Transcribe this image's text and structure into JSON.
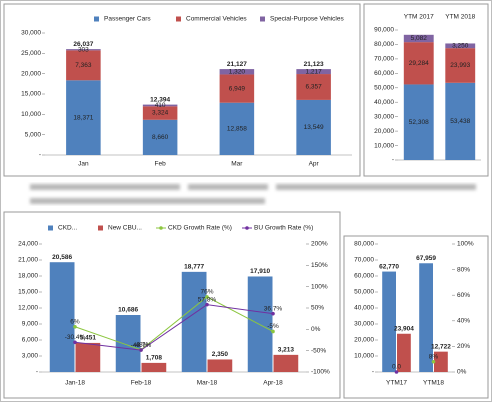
{
  "chart_data": [
    {
      "type": "stacked",
      "categories": [
        "Jan",
        "Feb",
        "Mar",
        "Apr"
      ],
      "series": [
        {
          "name": "Passenger Cars",
          "color": "#4f81bd",
          "values": [
            18371,
            8660,
            12858,
            13549
          ],
          "value_labels": [
            "18,371",
            "8,660",
            "12,858",
            "13,549"
          ]
        },
        {
          "name": "Commercial Vehicles",
          "color": "#c0504d",
          "values": [
            7363,
            3324,
            6949,
            6357
          ],
          "value_labels": [
            "7,363",
            "3,324",
            "6,949",
            "6,357"
          ]
        },
        {
          "name": "Special-Purpose Vehicles",
          "color": "#8064a2",
          "values": [
            303,
            410,
            1320,
            1217
          ],
          "value_labels": [
            "303",
            "410",
            "1,320",
            "1,217"
          ]
        }
      ],
      "totals": {
        "values": [
          26037,
          12394,
          21127,
          21123
        ],
        "value_labels": [
          "26,037",
          "12,394",
          "21,127",
          "21,123"
        ]
      },
      "ylim": [
        0,
        30000
      ],
      "yticks": [
        {
          "value": 0,
          "label": "-"
        },
        {
          "value": 5000,
          "label": "5,000"
        },
        {
          "value": 10000,
          "label": "10,000"
        },
        {
          "value": 15000,
          "label": "15,000"
        },
        {
          "value": 20000,
          "label": "20,000"
        },
        {
          "value": 25000,
          "label": "25,000"
        },
        {
          "value": 30000,
          "label": "30,000"
        }
      ],
      "legend": "top"
    },
    {
      "type": "stacked",
      "categories": [
        "YTM 2017",
        "YTM 2018"
      ],
      "series": [
        {
          "color": "#4f81bd",
          "values": [
            52308,
            53438
          ],
          "value_labels": [
            "52,308",
            "53,438"
          ]
        },
        {
          "color": "#c0504d",
          "values": [
            29284,
            23993
          ],
          "value_labels": [
            "29,284",
            "23,993"
          ]
        },
        {
          "color": "#8064a2",
          "values": [
            5082,
            3250
          ],
          "value_labels": [
            "5,082",
            "3,250"
          ]
        }
      ],
      "ylim": [
        0,
        90000
      ],
      "yticks": [
        {
          "value": 0,
          "label": "-"
        },
        {
          "value": 10000,
          "label": "10,000"
        },
        {
          "value": 20000,
          "label": "20,000"
        },
        {
          "value": 30000,
          "label": "30,000"
        },
        {
          "value": 40000,
          "label": "40,000"
        },
        {
          "value": 50000,
          "label": "50,000"
        },
        {
          "value": 60000,
          "label": "60,000"
        },
        {
          "value": 70000,
          "label": "70,000"
        },
        {
          "value": 80000,
          "label": "80,000"
        },
        {
          "value": 90000,
          "label": "90,000"
        }
      ]
    },
    {
      "type": "combo",
      "categories": [
        "Jan-18",
        "Feb-18",
        "Mar-18",
        "Apr-18"
      ],
      "series": [
        {
          "name": "CKD...",
          "color": "#4f81bd",
          "values": [
            20586,
            10686,
            18777,
            17910
          ],
          "value_labels": [
            "20,586",
            "10,686",
            "18,777",
            "17,910"
          ]
        },
        {
          "name": "New CBU...",
          "color": "#c0504d",
          "values": [
            5451,
            1708,
            2350,
            3213
          ],
          "value_labels": [
            "5,451",
            "1,708",
            "2,350",
            "3,213"
          ]
        },
        {
          "name": "CKD Growth Rate (%)",
          "type": "line",
          "axis": "y2",
          "color": "#8cc63f",
          "values": [
            6,
            -48,
            76,
            -5
          ],
          "value_labels": [
            "6%",
            "-48%",
            "76%",
            "-5%"
          ]
        },
        {
          "name": "BU Growth Rate (%)",
          "type": "line",
          "axis": "y2",
          "color": "#7030a0",
          "values": [
            -30.4,
            -48.7,
            57.8,
            36.7
          ],
          "value_labels": [
            "-30.4%",
            "-48.7%",
            "57.8%",
            "36.7%"
          ]
        }
      ],
      "ylim": [
        0,
        24000
      ],
      "yticks": [
        {
          "value": 0,
          "label": "-"
        },
        {
          "value": 3000,
          "label": "3,000"
        },
        {
          "value": 6000,
          "label": "6,000"
        },
        {
          "value": 9000,
          "label": "9,000"
        },
        {
          "value": 12000,
          "label": "12,000"
        },
        {
          "value": 15000,
          "label": "15,000"
        },
        {
          "value": 18000,
          "label": "18,000"
        },
        {
          "value": 21000,
          "label": "21,000"
        },
        {
          "value": 24000,
          "label": "24,000"
        }
      ],
      "y2lim": [
        -100,
        200
      ],
      "y2ticks": [
        {
          "value": -100,
          "label": "-100%"
        },
        {
          "value": -50,
          "label": "-50%"
        },
        {
          "value": 0,
          "label": "0%"
        },
        {
          "value": 50,
          "label": "50%"
        },
        {
          "value": 100,
          "label": "100%"
        },
        {
          "value": 150,
          "label": "150%"
        },
        {
          "value": 200,
          "label": "200%"
        }
      ],
      "legend": "top"
    },
    {
      "type": "combo",
      "categories": [
        "YTM17",
        "YTM18"
      ],
      "series": [
        {
          "color": "#4f81bd",
          "values": [
            62770,
            67959
          ],
          "value_labels": [
            "62,770",
            "67,959"
          ]
        },
        {
          "color": "#c0504d",
          "values": [
            23904,
            12722
          ],
          "value_labels": [
            "23,904",
            "12,722"
          ]
        },
        {
          "type": "line",
          "axis": "y2",
          "color": "#8cc63f",
          "values": [
            null,
            8
          ],
          "value_labels": [
            null,
            "8%"
          ]
        },
        {
          "type": "line",
          "axis": "y2",
          "color": "#7030a0",
          "values": [
            0,
            null
          ],
          "value_labels": [
            "0.0",
            null
          ]
        }
      ],
      "ylim": [
        0,
        80000
      ],
      "yticks": [
        {
          "value": 0,
          "label": "-"
        },
        {
          "value": 10000,
          "label": "10,000"
        },
        {
          "value": 20000,
          "label": "20,000"
        },
        {
          "value": 30000,
          "label": "30,000"
        },
        {
          "value": 40000,
          "label": "40,000"
        },
        {
          "value": 50000,
          "label": "50,000"
        },
        {
          "value": 60000,
          "label": "60,000"
        },
        {
          "value": 70000,
          "label": "70,000"
        },
        {
          "value": 80000,
          "label": "80,000"
        }
      ],
      "y2lim": [
        0,
        100
      ],
      "y2ticks": [
        {
          "value": 0,
          "label": "0%"
        },
        {
          "value": 20,
          "label": "20%"
        },
        {
          "value": 40,
          "label": "40%"
        },
        {
          "value": 60,
          "label": "60%"
        },
        {
          "value": 80,
          "label": "80%"
        },
        {
          "value": 100,
          "label": "100%"
        }
      ]
    }
  ]
}
